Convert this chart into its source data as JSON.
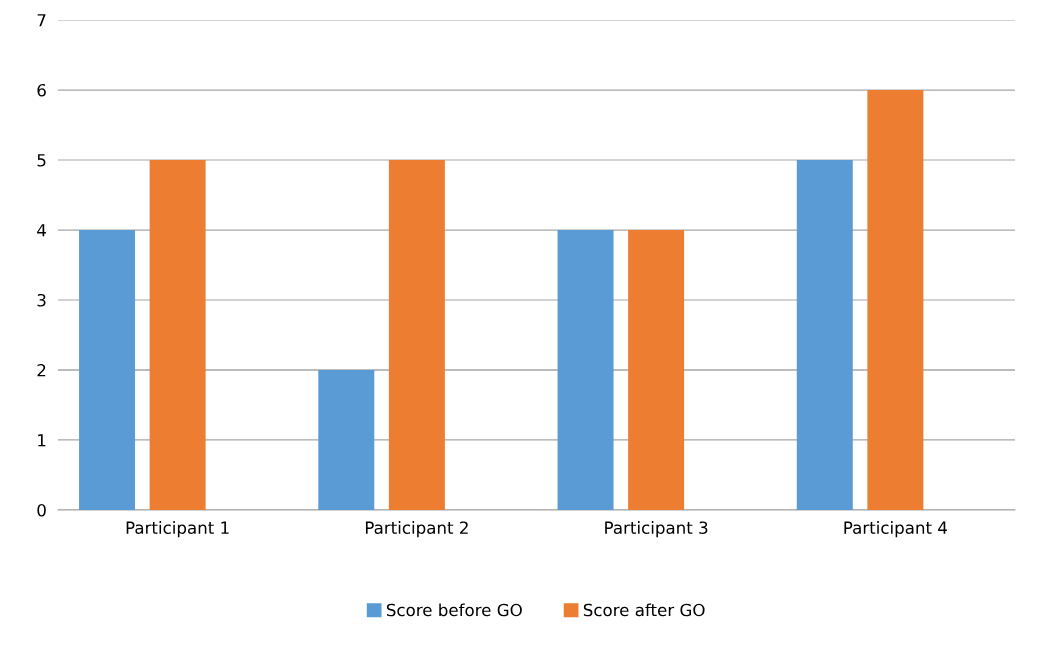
{
  "chart_data": {
    "type": "bar",
    "categories": [
      "Participant 1",
      "Participant 2",
      "Participant 3",
      "Participant 4"
    ],
    "series": [
      {
        "name": "Score before GO",
        "color": "#5b9bd5",
        "values": [
          4,
          2,
          4,
          5
        ]
      },
      {
        "name": "Score after GO",
        "color": "#ed7d31",
        "values": [
          5,
          5,
          4,
          6
        ]
      }
    ],
    "ylim": [
      0,
      7
    ],
    "yticks": [
      0,
      1,
      2,
      3,
      4,
      5,
      6,
      7
    ],
    "grid": "y",
    "legend": "bottom"
  }
}
